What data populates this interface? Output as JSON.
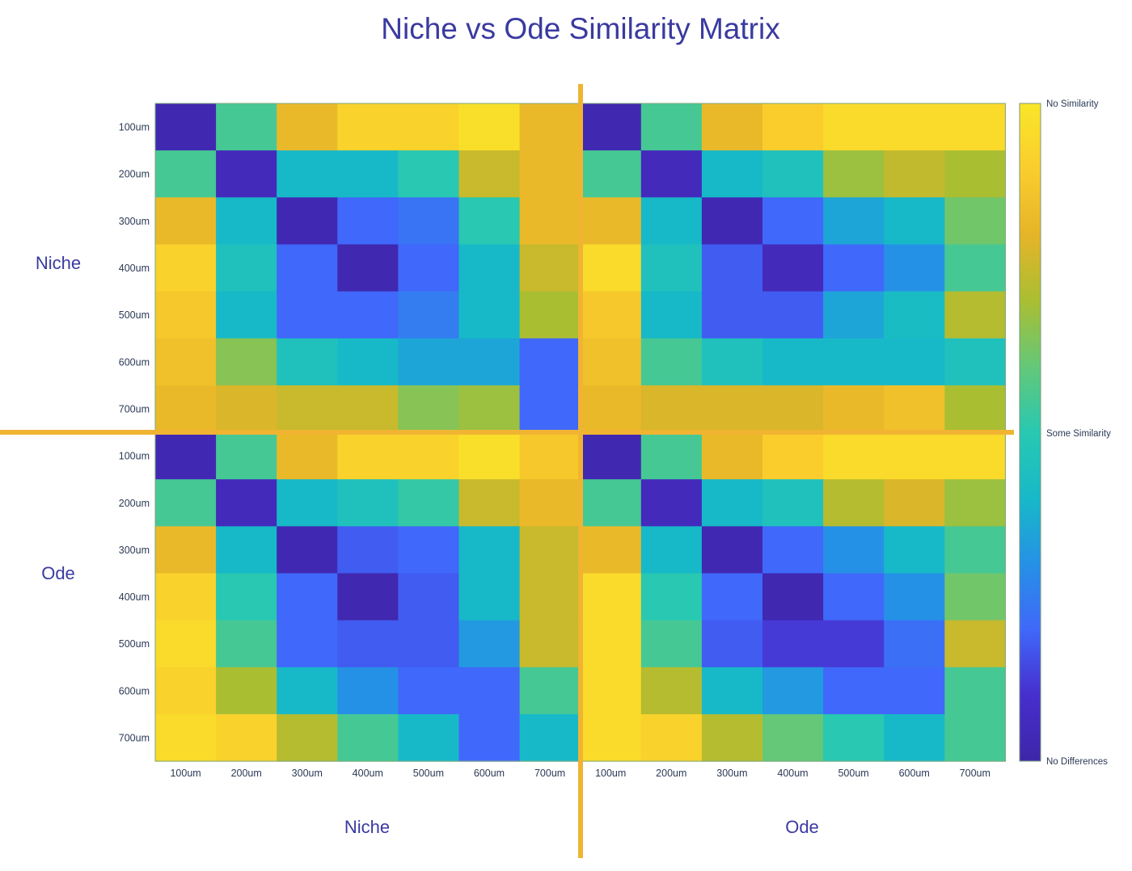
{
  "chart_data": {
    "type": "heatmap",
    "title": "Niche vs Ode Similarity Matrix",
    "row_groups": [
      "Niche",
      "Ode"
    ],
    "col_groups": [
      "Niche",
      "Ode"
    ],
    "sizes": [
      "100um",
      "200um",
      "300um",
      "400um",
      "500um",
      "600um",
      "700um"
    ],
    "scale": {
      "min": 0,
      "max": 1,
      "colormap": "parula"
    },
    "colorbar_labels": {
      "top": "No Similarity",
      "middle": "Some Similarity",
      "bottom": "No Differences"
    },
    "divider_color": "#f0b432",
    "values": [
      [
        0.02,
        0.55,
        0.82,
        0.92,
        0.92,
        0.97,
        0.82,
        0.02,
        0.55,
        0.82,
        0.9,
        0.95,
        0.95,
        0.95
      ],
      [
        0.55,
        0.05,
        0.4,
        0.4,
        0.5,
        0.75,
        0.82,
        0.55,
        0.05,
        0.4,
        0.45,
        0.68,
        0.74,
        0.7
      ],
      [
        0.82,
        0.4,
        0.03,
        0.2,
        0.23,
        0.5,
        0.82,
        0.82,
        0.4,
        0.03,
        0.2,
        0.35,
        0.4,
        0.62
      ],
      [
        0.92,
        0.45,
        0.2,
        0.02,
        0.2,
        0.4,
        0.75,
        0.95,
        0.45,
        0.18,
        0.05,
        0.2,
        0.3,
        0.55
      ],
      [
        0.88,
        0.4,
        0.2,
        0.2,
        0.25,
        0.4,
        0.7,
        0.88,
        0.4,
        0.18,
        0.18,
        0.35,
        0.42,
        0.72
      ],
      [
        0.85,
        0.65,
        0.45,
        0.4,
        0.35,
        0.35,
        0.2,
        0.85,
        0.55,
        0.45,
        0.4,
        0.4,
        0.4,
        0.45
      ],
      [
        0.82,
        0.78,
        0.75,
        0.75,
        0.65,
        0.68,
        0.2,
        0.82,
        0.78,
        0.78,
        0.78,
        0.82,
        0.85,
        0.7
      ],
      [
        0.03,
        0.55,
        0.82,
        0.92,
        0.92,
        0.97,
        0.88,
        0.02,
        0.55,
        0.82,
        0.9,
        0.95,
        0.95,
        0.95
      ],
      [
        0.55,
        0.05,
        0.4,
        0.45,
        0.52,
        0.75,
        0.82,
        0.55,
        0.05,
        0.4,
        0.45,
        0.72,
        0.78,
        0.68
      ],
      [
        0.82,
        0.4,
        0.03,
        0.18,
        0.2,
        0.4,
        0.75,
        0.82,
        0.4,
        0.03,
        0.2,
        0.3,
        0.4,
        0.55
      ],
      [
        0.92,
        0.5,
        0.2,
        0.02,
        0.18,
        0.4,
        0.75,
        0.95,
        0.5,
        0.2,
        0.02,
        0.2,
        0.3,
        0.62
      ],
      [
        0.95,
        0.55,
        0.2,
        0.18,
        0.18,
        0.32,
        0.75,
        0.95,
        0.55,
        0.18,
        0.12,
        0.12,
        0.22,
        0.75
      ],
      [
        0.92,
        0.7,
        0.4,
        0.3,
        0.2,
        0.2,
        0.55,
        0.95,
        0.72,
        0.4,
        0.32,
        0.2,
        0.2,
        0.55
      ],
      [
        0.95,
        0.92,
        0.72,
        0.55,
        0.4,
        0.2,
        0.4,
        0.95,
        0.92,
        0.72,
        0.6,
        0.5,
        0.4,
        0.55
      ]
    ]
  }
}
